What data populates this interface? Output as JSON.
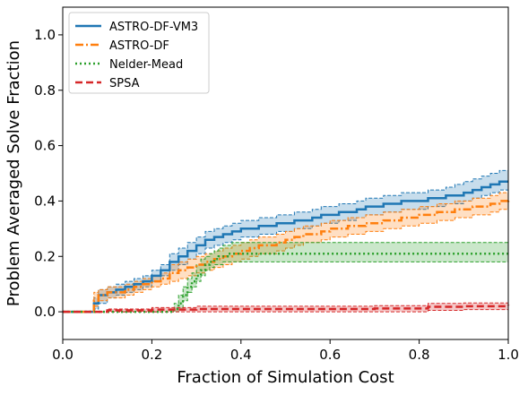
{
  "chart_data": {
    "type": "line",
    "title": "",
    "xlabel": "Fraction of Simulation Cost",
    "ylabel": "Problem Averaged Solve Fraction",
    "xlim": [
      0.0,
      1.0
    ],
    "ylim": [
      -0.1,
      1.1
    ],
    "xticks": [
      "0.0",
      "0.2",
      "0.4",
      "0.6",
      "0.8",
      "1.0"
    ],
    "yticks": [
      "0.0",
      "0.2",
      "0.4",
      "0.6",
      "0.8",
      "1.0"
    ],
    "legend_position": "top-left",
    "grid": false,
    "series": [
      {
        "name": "ASTRO-DF-VM3",
        "color": "#1f77b4",
        "linestyle": "solid",
        "x": [
          0.0,
          0.06,
          0.07,
          0.08,
          0.1,
          0.12,
          0.14,
          0.16,
          0.18,
          0.2,
          0.22,
          0.24,
          0.26,
          0.28,
          0.3,
          0.32,
          0.34,
          0.36,
          0.38,
          0.4,
          0.42,
          0.44,
          0.46,
          0.48,
          0.5,
          0.52,
          0.54,
          0.56,
          0.58,
          0.6,
          0.62,
          0.64,
          0.66,
          0.68,
          0.7,
          0.72,
          0.74,
          0.76,
          0.78,
          0.8,
          0.82,
          0.84,
          0.86,
          0.88,
          0.9,
          0.92,
          0.94,
          0.96,
          0.98,
          1.0
        ],
        "y": [
          0.0,
          0.0,
          0.03,
          0.06,
          0.07,
          0.08,
          0.09,
          0.1,
          0.11,
          0.13,
          0.15,
          0.18,
          0.2,
          0.22,
          0.24,
          0.26,
          0.27,
          0.28,
          0.29,
          0.3,
          0.3,
          0.31,
          0.31,
          0.32,
          0.32,
          0.33,
          0.33,
          0.34,
          0.35,
          0.35,
          0.36,
          0.36,
          0.37,
          0.38,
          0.38,
          0.39,
          0.39,
          0.4,
          0.4,
          0.4,
          0.41,
          0.41,
          0.42,
          0.42,
          0.43,
          0.44,
          0.45,
          0.46,
          0.47,
          0.47
        ],
        "lower": [
          0.0,
          0.0,
          0.01,
          0.03,
          0.05,
          0.06,
          0.07,
          0.08,
          0.09,
          0.11,
          0.13,
          0.15,
          0.17,
          0.19,
          0.21,
          0.23,
          0.24,
          0.25,
          0.26,
          0.27,
          0.27,
          0.28,
          0.28,
          0.29,
          0.29,
          0.3,
          0.3,
          0.31,
          0.32,
          0.32,
          0.33,
          0.33,
          0.34,
          0.35,
          0.35,
          0.36,
          0.36,
          0.37,
          0.37,
          0.37,
          0.38,
          0.38,
          0.39,
          0.39,
          0.4,
          0.41,
          0.42,
          0.43,
          0.44,
          0.44
        ],
        "upper": [
          0.0,
          0.0,
          0.05,
          0.08,
          0.09,
          0.1,
          0.11,
          0.12,
          0.13,
          0.15,
          0.17,
          0.21,
          0.23,
          0.25,
          0.27,
          0.29,
          0.3,
          0.31,
          0.32,
          0.33,
          0.33,
          0.34,
          0.34,
          0.35,
          0.35,
          0.36,
          0.36,
          0.37,
          0.38,
          0.38,
          0.39,
          0.39,
          0.4,
          0.41,
          0.41,
          0.42,
          0.42,
          0.43,
          0.43,
          0.43,
          0.44,
          0.44,
          0.45,
          0.46,
          0.47,
          0.48,
          0.49,
          0.5,
          0.51,
          0.51
        ]
      },
      {
        "name": "ASTRO-DF",
        "color": "#ff7f0e",
        "linestyle": "dashdot",
        "x": [
          0.0,
          0.06,
          0.07,
          0.08,
          0.1,
          0.12,
          0.14,
          0.16,
          0.18,
          0.2,
          0.22,
          0.24,
          0.26,
          0.28,
          0.3,
          0.32,
          0.34,
          0.36,
          0.38,
          0.4,
          0.42,
          0.44,
          0.46,
          0.48,
          0.5,
          0.52,
          0.54,
          0.56,
          0.58,
          0.6,
          0.62,
          0.64,
          0.66,
          0.68,
          0.7,
          0.72,
          0.74,
          0.76,
          0.78,
          0.8,
          0.82,
          0.84,
          0.86,
          0.88,
          0.9,
          0.92,
          0.94,
          0.96,
          0.98,
          1.0
        ],
        "y": [
          0.0,
          0.0,
          0.04,
          0.06,
          0.07,
          0.07,
          0.08,
          0.09,
          0.1,
          0.11,
          0.12,
          0.14,
          0.15,
          0.16,
          0.17,
          0.18,
          0.19,
          0.2,
          0.21,
          0.22,
          0.23,
          0.24,
          0.24,
          0.25,
          0.26,
          0.27,
          0.28,
          0.28,
          0.29,
          0.3,
          0.3,
          0.31,
          0.31,
          0.32,
          0.32,
          0.33,
          0.33,
          0.34,
          0.34,
          0.35,
          0.35,
          0.36,
          0.36,
          0.37,
          0.37,
          0.38,
          0.38,
          0.39,
          0.4,
          0.41
        ],
        "lower": [
          0.0,
          0.0,
          0.02,
          0.04,
          0.05,
          0.05,
          0.06,
          0.07,
          0.08,
          0.09,
          0.1,
          0.11,
          0.12,
          0.13,
          0.14,
          0.15,
          0.16,
          0.17,
          0.18,
          0.19,
          0.2,
          0.21,
          0.21,
          0.22,
          0.23,
          0.24,
          0.25,
          0.25,
          0.26,
          0.27,
          0.27,
          0.28,
          0.28,
          0.29,
          0.29,
          0.3,
          0.3,
          0.31,
          0.31,
          0.32,
          0.32,
          0.33,
          0.33,
          0.34,
          0.34,
          0.35,
          0.35,
          0.36,
          0.37,
          0.38
        ],
        "upper": [
          0.0,
          0.0,
          0.07,
          0.08,
          0.09,
          0.09,
          0.1,
          0.11,
          0.12,
          0.13,
          0.14,
          0.17,
          0.18,
          0.19,
          0.2,
          0.21,
          0.22,
          0.23,
          0.24,
          0.25,
          0.26,
          0.27,
          0.27,
          0.28,
          0.29,
          0.3,
          0.31,
          0.31,
          0.32,
          0.33,
          0.33,
          0.34,
          0.34,
          0.35,
          0.35,
          0.36,
          0.36,
          0.37,
          0.37,
          0.38,
          0.38,
          0.39,
          0.39,
          0.4,
          0.4,
          0.41,
          0.41,
          0.42,
          0.43,
          0.44
        ]
      },
      {
        "name": "Nelder-Mead",
        "color": "#2ca02c",
        "linestyle": "dotted",
        "x": [
          0.0,
          0.22,
          0.24,
          0.25,
          0.26,
          0.27,
          0.28,
          0.29,
          0.3,
          0.31,
          0.32,
          0.33,
          0.34,
          0.35,
          0.36,
          0.37,
          0.38,
          1.0
        ],
        "y": [
          0.0,
          0.0,
          0.0,
          0.01,
          0.03,
          0.06,
          0.09,
          0.11,
          0.13,
          0.15,
          0.17,
          0.18,
          0.19,
          0.2,
          0.2,
          0.21,
          0.21,
          0.21
        ],
        "lower": [
          0.0,
          0.0,
          0.0,
          0.0,
          0.01,
          0.04,
          0.07,
          0.09,
          0.11,
          0.13,
          0.15,
          0.16,
          0.17,
          0.17,
          0.18,
          0.18,
          0.18,
          0.18
        ],
        "upper": [
          0.0,
          0.0,
          0.01,
          0.03,
          0.06,
          0.09,
          0.12,
          0.14,
          0.17,
          0.19,
          0.2,
          0.21,
          0.22,
          0.23,
          0.24,
          0.24,
          0.25,
          0.25
        ]
      },
      {
        "name": "SPSA",
        "color": "#d62728",
        "linestyle": "dashed",
        "x": [
          0.0,
          0.1,
          0.2,
          0.3,
          0.4,
          0.5,
          0.6,
          0.7,
          0.8,
          0.82,
          0.9,
          1.0
        ],
        "y": [
          0.0,
          0.005,
          0.008,
          0.01,
          0.01,
          0.01,
          0.01,
          0.012,
          0.012,
          0.018,
          0.02,
          0.025
        ],
        "lower": [
          0.0,
          0.0,
          0.0,
          0.0,
          0.0,
          0.0,
          0.0,
          0.0,
          0.0,
          0.005,
          0.008,
          0.01
        ],
        "upper": [
          0.0,
          0.01,
          0.015,
          0.02,
          0.02,
          0.02,
          0.02,
          0.022,
          0.022,
          0.03,
          0.032,
          0.035
        ]
      }
    ]
  }
}
